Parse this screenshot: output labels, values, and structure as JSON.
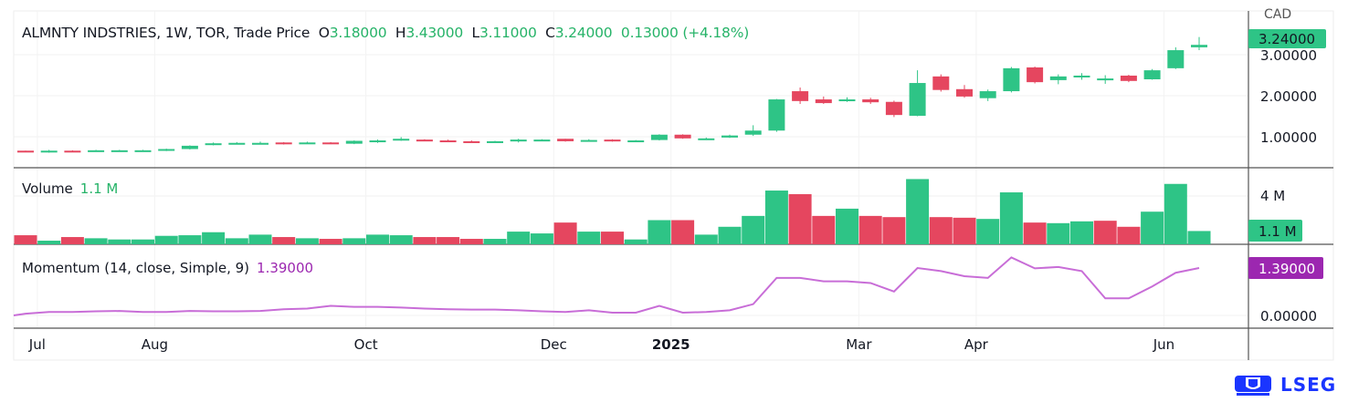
{
  "header": {
    "symbol": "ALMNTY INDSTRIES, 1W, TOR, Trade Price",
    "open_label": "O",
    "open": "3.18000",
    "high_label": "H",
    "high": "3.43000",
    "low_label": "L",
    "low": "3.11000",
    "close_label": "C",
    "close": "3.24000",
    "change": "0.13000 (+4.18%)"
  },
  "currency": "CAD",
  "volume_pane": {
    "label": "Volume",
    "value": "1.1 M"
  },
  "momentum_pane": {
    "label": "Momentum (14, close, Simple, 9)",
    "value": "1.39000"
  },
  "logo": {
    "text": "LSEG"
  },
  "colors": {
    "up": "#2ec486",
    "down": "#e5465f",
    "momentum": "#c86dd7",
    "momentum_badge": "#9c27b0"
  },
  "chart_data": [
    {
      "type": "candlestick",
      "title": "ALMNTY INDSTRIES, 1W, TOR, Trade Price",
      "ylabel": "CAD",
      "ylim": [
        0.3,
        3.75
      ],
      "yticks": [
        "1.00000",
        "2.00000",
        "3.00000"
      ],
      "last_price_label": "3.24000",
      "x_ticks": [
        {
          "label": "Jul",
          "index": 0.5,
          "bold": false
        },
        {
          "label": "Aug",
          "index": 5.5,
          "bold": false
        },
        {
          "label": "Oct",
          "index": 14.5,
          "bold": false
        },
        {
          "label": "Dec",
          "index": 22.5,
          "bold": false
        },
        {
          "label": "2025",
          "index": 27.5,
          "bold": true
        },
        {
          "label": "Mar",
          "index": 35.5,
          "bold": false
        },
        {
          "label": "Apr",
          "index": 40.5,
          "bold": false
        },
        {
          "label": "Jun",
          "index": 48.5,
          "bold": false
        }
      ],
      "ohlc": [
        [
          0.66,
          0.66,
          0.63,
          0.63
        ],
        [
          0.62,
          0.68,
          0.61,
          0.66
        ],
        [
          0.66,
          0.67,
          0.63,
          0.64
        ],
        [
          0.67,
          0.68,
          0.66,
          0.67
        ],
        [
          0.67,
          0.68,
          0.66,
          0.67
        ],
        [
          0.67,
          0.68,
          0.66,
          0.67
        ],
        [
          0.66,
          0.71,
          0.65,
          0.7
        ],
        [
          0.7,
          0.79,
          0.69,
          0.78
        ],
        [
          0.8,
          0.86,
          0.79,
          0.84
        ],
        [
          0.84,
          0.87,
          0.82,
          0.85
        ],
        [
          0.84,
          0.88,
          0.83,
          0.85
        ],
        [
          0.86,
          0.87,
          0.81,
          0.84
        ],
        [
          0.85,
          0.88,
          0.83,
          0.86
        ],
        [
          0.86,
          0.87,
          0.82,
          0.84
        ],
        [
          0.83,
          0.91,
          0.82,
          0.9
        ],
        [
          0.9,
          0.93,
          0.85,
          0.91
        ],
        [
          0.92,
          0.99,
          0.9,
          0.95
        ],
        [
          0.93,
          0.94,
          0.9,
          0.91
        ],
        [
          0.91,
          0.93,
          0.88,
          0.89
        ],
        [
          0.89,
          0.91,
          0.87,
          0.88
        ],
        [
          0.88,
          0.9,
          0.87,
          0.89
        ],
        [
          0.91,
          0.95,
          0.86,
          0.93
        ],
        [
          0.92,
          0.94,
          0.91,
          0.93
        ],
        [
          0.95,
          0.95,
          0.88,
          0.89
        ],
        [
          0.92,
          0.94,
          0.9,
          0.92
        ],
        [
          0.93,
          0.94,
          0.88,
          0.89
        ],
        [
          0.9,
          0.92,
          0.89,
          0.91
        ],
        [
          0.92,
          1.06,
          0.91,
          1.05
        ],
        [
          1.05,
          1.06,
          0.95,
          0.96
        ],
        [
          0.95,
          0.98,
          0.94,
          0.96
        ],
        [
          0.98,
          1.05,
          0.97,
          1.03
        ],
        [
          1.05,
          1.28,
          1.02,
          1.15
        ],
        [
          1.15,
          1.92,
          1.12,
          1.91
        ],
        [
          2.11,
          2.2,
          1.8,
          1.87
        ],
        [
          1.91,
          1.98,
          1.8,
          1.82
        ],
        [
          1.91,
          1.96,
          1.85,
          1.91
        ],
        [
          1.91,
          1.95,
          1.8,
          1.84
        ],
        [
          1.85,
          1.88,
          1.48,
          1.53
        ],
        [
          1.51,
          2.62,
          1.5,
          2.31
        ],
        [
          2.47,
          2.52,
          2.1,
          2.14
        ],
        [
          2.16,
          2.26,
          1.95,
          1.98
        ],
        [
          1.94,
          2.15,
          1.87,
          2.11
        ],
        [
          2.11,
          2.7,
          2.08,
          2.67
        ],
        [
          2.69,
          2.71,
          2.3,
          2.33
        ],
        [
          2.38,
          2.52,
          2.28,
          2.47
        ],
        [
          2.49,
          2.55,
          2.39,
          2.49
        ],
        [
          2.42,
          2.5,
          2.29,
          2.42
        ],
        [
          2.49,
          2.51,
          2.33,
          2.36
        ],
        [
          2.4,
          2.65,
          2.39,
          2.62
        ],
        [
          2.67,
          3.18,
          2.65,
          3.11
        ],
        [
          3.18,
          3.43,
          3.11,
          3.24
        ]
      ]
    },
    {
      "type": "bar",
      "title": "Volume",
      "unit": "M",
      "yticks": [
        "4 M"
      ],
      "last_value_label": "1.1 M",
      "values": [
        0.75,
        0.3,
        0.6,
        0.5,
        0.4,
        0.4,
        0.7,
        0.75,
        1.0,
        0.5,
        0.8,
        0.6,
        0.5,
        0.45,
        0.5,
        0.8,
        0.75,
        0.6,
        0.6,
        0.45,
        0.45,
        1.05,
        0.9,
        1.8,
        1.05,
        1.05,
        0.4,
        2.0,
        2.0,
        0.8,
        1.45,
        2.35,
        4.45,
        4.15,
        2.35,
        2.95,
        2.35,
        2.25,
        5.4,
        2.25,
        2.2,
        2.1,
        4.3,
        1.8,
        1.75,
        1.9,
        1.95,
        1.45,
        2.7,
        5.0,
        1.1
      ],
      "direction": [
        "d",
        "u",
        "d",
        "u",
        "u",
        "u",
        "u",
        "u",
        "u",
        "u",
        "u",
        "d",
        "u",
        "d",
        "u",
        "u",
        "u",
        "d",
        "d",
        "d",
        "u",
        "u",
        "u",
        "d",
        "u",
        "d",
        "u",
        "u",
        "d",
        "u",
        "u",
        "u",
        "u",
        "d",
        "d",
        "u",
        "d",
        "d",
        "u",
        "d",
        "d",
        "u",
        "u",
        "d",
        "u",
        "u",
        "d",
        "d",
        "u",
        "u",
        "u"
      ]
    },
    {
      "type": "line",
      "title": "Momentum (14, close, Simple, 9)",
      "yticks": [
        "0.00000"
      ],
      "last_value_label": "1.39000",
      "values": [
        0.05,
        0.1,
        0.1,
        0.12,
        0.13,
        0.1,
        0.1,
        0.13,
        0.12,
        0.12,
        0.13,
        0.18,
        0.2,
        0.28,
        0.25,
        0.25,
        0.23,
        0.2,
        0.18,
        0.17,
        0.17,
        0.15,
        0.12,
        0.1,
        0.15,
        0.08,
        0.08,
        0.28,
        0.08,
        0.1,
        0.15,
        0.33,
        1.1,
        1.1,
        1.0,
        1.0,
        0.95,
        0.7,
        1.39,
        1.3,
        1.15,
        1.1,
        1.7,
        1.38,
        1.42,
        1.3,
        0.5,
        0.5,
        0.85,
        1.25,
        1.39
      ]
    }
  ]
}
